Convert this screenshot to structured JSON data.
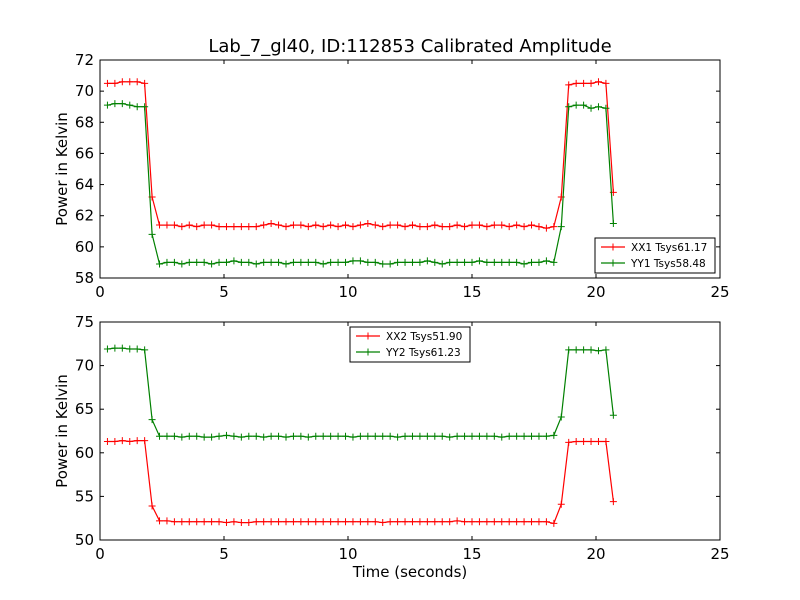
{
  "colors": {
    "red": "#ff0000",
    "green": "#008000",
    "axis": "#000000",
    "background": "#ffffff"
  },
  "chart_data": [
    {
      "type": "line",
      "title": "Lab_7_gl40, ID:112853 Calibrated Amplitude",
      "xlabel": "",
      "ylabel": "Power in Kelvin",
      "xlim": [
        0,
        25
      ],
      "ylim": [
        58,
        72
      ],
      "xticks": [
        "0",
        "5",
        "10",
        "15",
        "20",
        "25"
      ],
      "yticks": [
        "58",
        "60",
        "62",
        "64",
        "66",
        "68",
        "70",
        "72"
      ],
      "grid": false,
      "legend_position": "lower-right",
      "series": [
        {
          "name": "XX1 Tsys61.17",
          "color": "#ff0000",
          "x": [
            0.3,
            0.6,
            0.9,
            1.2,
            1.5,
            1.8,
            2.1,
            2.4,
            2.7,
            3.0,
            3.3,
            3.6,
            3.9,
            4.2,
            4.5,
            4.8,
            5.1,
            5.4,
            5.7,
            6.0,
            6.3,
            6.6,
            6.9,
            7.2,
            7.5,
            7.8,
            8.1,
            8.4,
            8.7,
            9.0,
            9.3,
            9.6,
            9.9,
            10.2,
            10.5,
            10.8,
            11.1,
            11.4,
            11.7,
            12.0,
            12.3,
            12.6,
            12.9,
            13.2,
            13.5,
            13.8,
            14.1,
            14.4,
            14.7,
            15.0,
            15.3,
            15.6,
            15.9,
            16.2,
            16.5,
            16.8,
            17.1,
            17.4,
            17.7,
            18.0,
            18.3,
            18.6,
            18.9,
            19.2,
            19.5,
            19.8,
            20.1,
            20.4,
            20.7
          ],
          "y": [
            70.5,
            70.5,
            70.6,
            70.6,
            70.6,
            70.5,
            63.2,
            61.4,
            61.4,
            61.4,
            61.3,
            61.4,
            61.3,
            61.4,
            61.4,
            61.3,
            61.3,
            61.3,
            61.3,
            61.3,
            61.3,
            61.4,
            61.5,
            61.4,
            61.3,
            61.4,
            61.4,
            61.3,
            61.4,
            61.3,
            61.4,
            61.3,
            61.4,
            61.3,
            61.4,
            61.5,
            61.4,
            61.3,
            61.4,
            61.4,
            61.3,
            61.4,
            61.3,
            61.3,
            61.4,
            61.3,
            61.3,
            61.4,
            61.3,
            61.4,
            61.4,
            61.3,
            61.4,
            61.4,
            61.3,
            61.4,
            61.3,
            61.4,
            61.3,
            61.2,
            61.3,
            63.2,
            70.4,
            70.5,
            70.5,
            70.5,
            70.6,
            70.5,
            63.5
          ]
        },
        {
          "name": "YY1 Tsys58.48",
          "color": "#008000",
          "x": [
            0.3,
            0.6,
            0.9,
            1.2,
            1.5,
            1.8,
            2.1,
            2.4,
            2.7,
            3.0,
            3.3,
            3.6,
            3.9,
            4.2,
            4.5,
            4.8,
            5.1,
            5.4,
            5.7,
            6.0,
            6.3,
            6.6,
            6.9,
            7.2,
            7.5,
            7.8,
            8.1,
            8.4,
            8.7,
            9.0,
            9.3,
            9.6,
            9.9,
            10.2,
            10.5,
            10.8,
            11.1,
            11.4,
            11.7,
            12.0,
            12.3,
            12.6,
            12.9,
            13.2,
            13.5,
            13.8,
            14.1,
            14.4,
            14.7,
            15.0,
            15.3,
            15.6,
            15.9,
            16.2,
            16.5,
            16.8,
            17.1,
            17.4,
            17.7,
            18.0,
            18.3,
            18.6,
            18.9,
            19.2,
            19.5,
            19.8,
            20.1,
            20.4,
            20.7
          ],
          "y": [
            69.1,
            69.2,
            69.2,
            69.1,
            69.0,
            69.0,
            60.8,
            58.9,
            59.0,
            59.0,
            58.9,
            59.0,
            59.0,
            59.0,
            58.9,
            59.0,
            59.0,
            59.1,
            59.0,
            59.0,
            58.9,
            59.0,
            59.0,
            59.0,
            58.9,
            59.0,
            59.0,
            59.0,
            59.0,
            58.9,
            59.0,
            59.0,
            59.0,
            59.1,
            59.1,
            59.0,
            59.0,
            58.9,
            58.9,
            59.0,
            59.0,
            59.0,
            59.0,
            59.1,
            59.0,
            58.9,
            59.0,
            59.0,
            59.0,
            59.0,
            59.1,
            59.0,
            59.0,
            59.0,
            59.0,
            59.0,
            58.9,
            59.0,
            59.0,
            59.1,
            59.0,
            61.3,
            69.0,
            69.1,
            69.1,
            68.9,
            69.0,
            68.9,
            61.5
          ]
        }
      ]
    },
    {
      "type": "line",
      "title": "",
      "xlabel": "Time (seconds)",
      "ylabel": "Power in Kelvin",
      "xlim": [
        0,
        25
      ],
      "ylim": [
        50,
        75
      ],
      "xticks": [
        "0",
        "5",
        "10",
        "15",
        "20",
        "25"
      ],
      "yticks": [
        "50",
        "55",
        "60",
        "65",
        "70",
        "75"
      ],
      "grid": false,
      "legend_position": "upper-center",
      "series": [
        {
          "name": "XX2 Tsys51.90",
          "color": "#ff0000",
          "x": [
            0.3,
            0.6,
            0.9,
            1.2,
            1.5,
            1.8,
            2.1,
            2.4,
            2.7,
            3.0,
            3.3,
            3.6,
            3.9,
            4.2,
            4.5,
            4.8,
            5.1,
            5.4,
            5.7,
            6.0,
            6.3,
            6.6,
            6.9,
            7.2,
            7.5,
            7.8,
            8.1,
            8.4,
            8.7,
            9.0,
            9.3,
            9.6,
            9.9,
            10.2,
            10.5,
            10.8,
            11.1,
            11.4,
            11.7,
            12.0,
            12.3,
            12.6,
            12.9,
            13.2,
            13.5,
            13.8,
            14.1,
            14.4,
            14.7,
            15.0,
            15.3,
            15.6,
            15.9,
            16.2,
            16.5,
            16.8,
            17.1,
            17.4,
            17.7,
            18.0,
            18.3,
            18.6,
            18.9,
            19.2,
            19.5,
            19.8,
            20.1,
            20.4,
            20.7
          ],
          "y": [
            61.3,
            61.3,
            61.4,
            61.3,
            61.4,
            61.4,
            53.9,
            52.2,
            52.2,
            52.1,
            52.1,
            52.1,
            52.1,
            52.1,
            52.1,
            52.1,
            52.0,
            52.1,
            52.0,
            52.0,
            52.1,
            52.1,
            52.1,
            52.1,
            52.1,
            52.1,
            52.1,
            52.1,
            52.1,
            52.1,
            52.1,
            52.1,
            52.1,
            52.1,
            52.1,
            52.1,
            52.1,
            52.0,
            52.1,
            52.1,
            52.1,
            52.1,
            52.1,
            52.1,
            52.1,
            52.1,
            52.1,
            52.2,
            52.1,
            52.1,
            52.1,
            52.1,
            52.1,
            52.1,
            52.1,
            52.1,
            52.1,
            52.1,
            52.1,
            52.1,
            51.9,
            54.1,
            61.2,
            61.3,
            61.3,
            61.3,
            61.3,
            61.3,
            54.4
          ]
        },
        {
          "name": "YY2 Tsys61.23",
          "color": "#008000",
          "x": [
            0.3,
            0.6,
            0.9,
            1.2,
            1.5,
            1.8,
            2.1,
            2.4,
            2.7,
            3.0,
            3.3,
            3.6,
            3.9,
            4.2,
            4.5,
            4.8,
            5.1,
            5.4,
            5.7,
            6.0,
            6.3,
            6.6,
            6.9,
            7.2,
            7.5,
            7.8,
            8.1,
            8.4,
            8.7,
            9.0,
            9.3,
            9.6,
            9.9,
            10.2,
            10.5,
            10.8,
            11.1,
            11.4,
            11.7,
            12.0,
            12.3,
            12.6,
            12.9,
            13.2,
            13.5,
            13.8,
            14.1,
            14.4,
            14.7,
            15.0,
            15.3,
            15.6,
            15.9,
            16.2,
            16.5,
            16.8,
            17.1,
            17.4,
            17.7,
            18.0,
            18.3,
            18.6,
            18.9,
            19.2,
            19.5,
            19.8,
            20.1,
            20.4,
            20.7
          ],
          "y": [
            71.9,
            72.0,
            72.0,
            71.9,
            71.9,
            71.8,
            63.8,
            61.9,
            61.9,
            61.9,
            61.8,
            61.9,
            61.9,
            61.8,
            61.8,
            61.9,
            62.0,
            61.9,
            61.8,
            61.9,
            61.9,
            61.8,
            61.9,
            61.9,
            61.8,
            61.9,
            61.9,
            61.8,
            61.9,
            61.9,
            61.9,
            61.9,
            61.9,
            61.8,
            61.9,
            61.9,
            61.9,
            61.9,
            61.9,
            61.8,
            61.9,
            61.9,
            61.9,
            61.9,
            61.9,
            61.9,
            61.8,
            61.9,
            61.9,
            61.9,
            61.9,
            61.9,
            61.9,
            61.8,
            61.9,
            61.9,
            61.9,
            61.9,
            61.9,
            61.9,
            62.0,
            64.1,
            71.8,
            71.8,
            71.8,
            71.8,
            71.7,
            71.8,
            64.3
          ]
        }
      ]
    }
  ]
}
